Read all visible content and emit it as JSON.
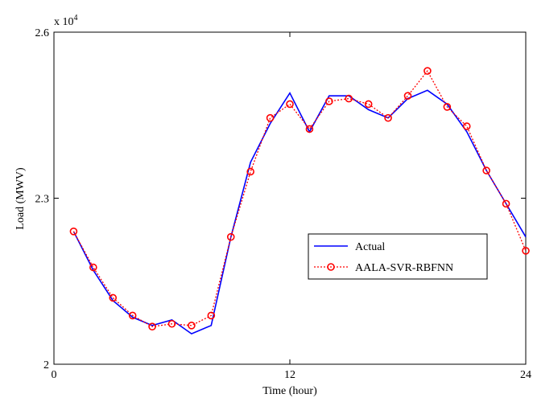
{
  "chart_data": {
    "type": "line",
    "title": "",
    "xlabel": "Time (hour)",
    "ylabel": "Load (MWV)",
    "xlim": [
      0,
      24
    ],
    "ylim": [
      20000,
      26000
    ],
    "xticks": [
      0,
      12,
      24
    ],
    "xtick_labels": [
      "0",
      "12",
      "24"
    ],
    "yticks": [
      20000,
      23000,
      26000
    ],
    "ytick_labels": [
      "2",
      "2.3",
      "2.6"
    ],
    "y_exponent_label": "x 10",
    "y_exponent_power": "4",
    "grid": false,
    "legend_position": "center-right",
    "series": [
      {
        "name": "Actual",
        "color": "#0000ff",
        "style": "solid",
        "x": [
          1,
          2,
          3,
          4,
          5,
          6,
          7,
          8,
          9,
          10,
          11,
          12,
          13,
          14,
          15,
          16,
          17,
          18,
          19,
          20,
          21,
          22,
          23,
          24
        ],
        "values": [
          22400,
          21700,
          21150,
          20850,
          20700,
          20800,
          20550,
          20700,
          22300,
          23650,
          24350,
          24900,
          24200,
          24850,
          24850,
          24600,
          24450,
          24800,
          24950,
          24700,
          24200,
          23500,
          22900,
          22300
        ]
      },
      {
        "name": "AALA-SVR-RBFNN",
        "color": "#ff0000",
        "style": "dotted-circle",
        "x": [
          1,
          2,
          3,
          4,
          5,
          6,
          7,
          8,
          9,
          10,
          11,
          12,
          13,
          14,
          15,
          16,
          17,
          18,
          19,
          20,
          21,
          22,
          23,
          24
        ],
        "values": [
          22400,
          21750,
          21200,
          20880,
          20680,
          20730,
          20700,
          20880,
          22300,
          23480,
          24450,
          24700,
          24250,
          24750,
          24800,
          24700,
          24450,
          24850,
          25300,
          24650,
          24300,
          23500,
          22900,
          22050
        ]
      }
    ]
  }
}
